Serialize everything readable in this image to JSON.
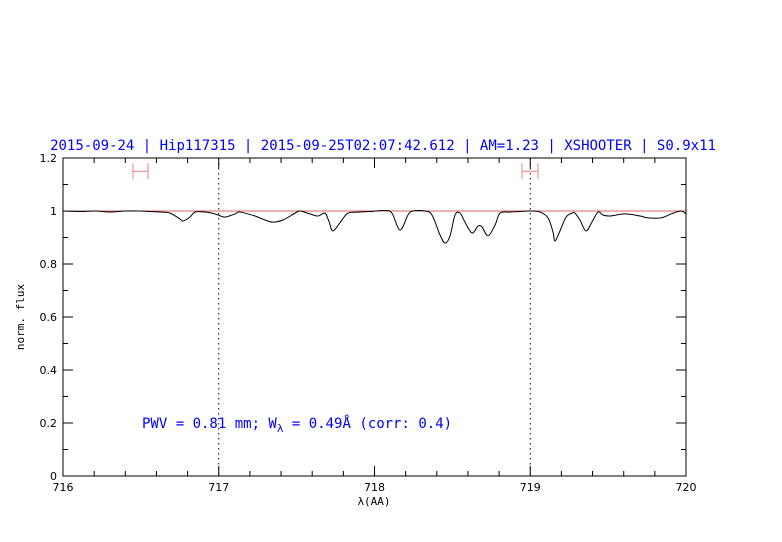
{
  "chart_data": {
    "type": "line",
    "title": "2015-09-24 | Hip117315 | 2015-09-25T02:07:42.612 | AM=1.23 | XSHOOTER | S0.9x11",
    "xlabel": "λ(AA)",
    "ylabel": "norm. flux",
    "xlim": [
      716,
      720
    ],
    "ylim": [
      0,
      1.2
    ],
    "xticks": [
      "716",
      "717",
      "718",
      "719",
      "720"
    ],
    "yticks": [
      "0",
      "0.2",
      "0.4",
      "0.6",
      "0.8",
      "1",
      "1.2"
    ],
    "grid": false,
    "reference_line": {
      "y": 1.0,
      "color": "#e06060"
    },
    "vertical_dotted_lines": [
      717,
      719
    ],
    "error_bars": [
      {
        "x": [
          716.449,
          716.546
        ],
        "y": 1.15,
        "color": "#f08080"
      },
      {
        "x": [
          718.947,
          719.05
        ],
        "y": 1.15,
        "color": "#f08080"
      }
    ],
    "annotation": {
      "prefix": "PWV = 0.81 mm; W",
      "subscript": "λ",
      "suffix": " = 0.49Å (corr: 0.4)"
    },
    "series": [
      {
        "color": "#000000",
        "x": [
          716.0,
          716.109,
          716.205,
          716.302,
          716.398,
          716.494,
          716.559,
          716.623,
          716.687,
          716.751,
          716.77,
          716.815,
          716.848,
          716.912,
          716.957,
          716.995,
          717.04,
          717.104,
          717.136,
          717.233,
          717.297,
          717.348,
          717.412,
          717.49,
          717.522,
          717.586,
          717.637,
          717.682,
          717.708,
          717.734,
          717.791,
          717.83,
          717.907,
          717.971,
          718.067,
          718.112,
          718.164,
          718.215,
          718.247,
          718.324,
          718.369,
          718.421,
          718.453,
          718.485,
          718.517,
          718.549,
          718.581,
          718.626,
          718.665,
          718.69,
          718.729,
          718.774,
          718.806,
          718.87,
          718.934,
          718.998,
          719.063,
          719.114,
          719.146,
          719.159,
          719.191,
          719.23,
          719.268,
          719.287,
          719.319,
          719.358,
          719.396,
          719.435,
          719.467,
          719.512,
          719.608,
          719.705,
          719.756,
          719.84,
          719.904,
          719.968,
          720.0
        ],
        "y": [
          1.0,
          0.998,
          1.0,
          0.996,
          1.0,
          1.0,
          0.998,
          0.996,
          0.992,
          0.97,
          0.962,
          0.977,
          0.996,
          0.996,
          0.992,
          0.985,
          0.977,
          0.989,
          0.996,
          0.981,
          0.966,
          0.958,
          0.966,
          0.992,
          1.0,
          0.989,
          0.981,
          0.992,
          0.96,
          0.925,
          0.966,
          0.992,
          0.996,
          0.998,
          1.002,
          0.992,
          0.928,
          0.985,
          1.0,
          1.0,
          0.985,
          0.909,
          0.879,
          0.906,
          0.985,
          0.992,
          0.958,
          0.917,
          0.943,
          0.94,
          0.906,
          0.947,
          0.992,
          0.996,
          0.998,
          1.0,
          0.996,
          0.974,
          0.921,
          0.887,
          0.925,
          0.977,
          0.992,
          0.992,
          0.966,
          0.925,
          0.958,
          0.996,
          0.985,
          0.981,
          0.989,
          0.981,
          0.974,
          0.974,
          0.989,
          1.0,
          0.989
        ]
      }
    ]
  }
}
